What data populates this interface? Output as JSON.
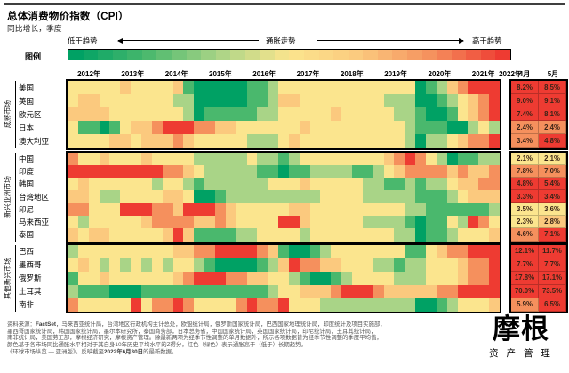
{
  "page": {
    "title": "总体消费物价指数（CPI）",
    "subtitle": "同比增长，季度"
  },
  "legend": {
    "label": "图例",
    "low": "低于趋势",
    "mid": "通胀走势",
    "high": "高于趋势"
  },
  "chart_data": {
    "type": "heatmap",
    "title": "总体消费物价指数（CPI）",
    "subtitle": "同比增长，季度",
    "x_years": [
      "2012年",
      "2013年",
      "2014年",
      "2015年",
      "2016年",
      "2017年",
      "2018年",
      "2019年",
      "2020年",
      "2021年"
    ],
    "year_2022_label": "2022年",
    "month_cols": [
      "4月",
      "5月"
    ],
    "columns_per_year": 4,
    "total_quarter_columns": 41,
    "scale_note": "色阶为各市场同比通胀相对自身10年均值的Z得分：-3=深绿(远低于趋势) … 0=黄 … +3=红(远高于趋势)；单元格数值为估读",
    "palette": {
      "-3": "#00a164",
      "-2": "#4ab86d",
      "-1": "#a9d487",
      "0": "#fbe58e",
      "1": "#fbc97e",
      "2": "#f5905d",
      "3": "#ee3b32"
    },
    "groups": [
      {
        "name": "成熟市场",
        "rows": [
          {
            "label": "美国",
            "cells": [
              0,
              0,
              0,
              0,
              0,
              1,
              0,
              0,
              0,
              0,
              1,
              -2,
              -3,
              -3,
              -3,
              -3,
              -3,
              -2,
              -2,
              -1,
              0,
              0,
              0,
              0,
              0,
              0,
              0,
              0,
              0,
              0,
              0,
              0,
              0,
              -3,
              -2,
              -1,
              1,
              2,
              3,
              3,
              3
            ],
            "values": [
              "8.2%",
              "8.5%"
            ],
            "value_colors": [
              3,
              3
            ]
          },
          {
            "label": "英国",
            "cells": [
              0,
              1,
              1,
              0,
              0,
              0,
              0,
              0,
              0,
              0,
              -1,
              -1,
              -3,
              -3,
              -3,
              -3,
              -3,
              -2,
              -2,
              -1,
              1,
              1,
              0,
              0,
              0,
              0,
              0,
              0,
              0,
              0,
              -1,
              -1,
              -1,
              -3,
              -3,
              -2,
              -1,
              0,
              1,
              2,
              3
            ],
            "values": [
              "9.0%",
              "9.1%"
            ],
            "value_colors": [
              3,
              3
            ]
          },
          {
            "label": "欧元区",
            "cells": [
              1,
              1,
              1,
              1,
              0,
              0,
              0,
              0,
              0,
              0,
              0,
              -1,
              -3,
              -2,
              -2,
              -2,
              -2,
              -2,
              -1,
              -1,
              0,
              0,
              0,
              0,
              0,
              1,
              0,
              0,
              0,
              0,
              0,
              -1,
              -1,
              -2,
              -3,
              -3,
              -2,
              0,
              1,
              2,
              3
            ],
            "values": [
              "7.4%",
              "8.1%"
            ],
            "value_colors": [
              3,
              3
            ]
          },
          {
            "label": "日本",
            "cells": [
              0,
              -2,
              -2,
              -3,
              -2,
              0,
              1,
              1,
              2,
              3,
              3,
              3,
              2,
              2,
              1,
              1,
              0,
              0,
              0,
              0,
              0,
              0,
              1,
              0,
              0,
              0,
              0,
              0,
              0,
              0,
              0,
              0,
              -1,
              -2,
              -2,
              -2,
              -3,
              -3,
              -1,
              0,
              -1
            ],
            "values": [
              "2.4%",
              "2.4%"
            ],
            "value_colors": [
              2,
              2
            ]
          },
          {
            "label": "澳大利亚",
            "cells": [
              0,
              0,
              0,
              0,
              1,
              1,
              0,
              1,
              1,
              1,
              2,
              1,
              0,
              0,
              0,
              0,
              0,
              -1,
              -1,
              -1,
              0,
              1,
              0,
              0,
              0,
              0,
              0,
              0,
              0,
              0,
              0,
              0,
              -1,
              -3,
              -1,
              -1,
              0,
              1,
              2,
              2,
              3
            ],
            "values": [
              "3.4%",
              "4.8%"
            ],
            "value_colors": [
              2,
              3
            ]
          }
        ]
      },
      {
        "name": "新兴亚洲市场",
        "rows": [
          {
            "label": "中国",
            "cells": [
              2,
              0,
              0,
              1,
              0,
              0,
              0,
              1,
              0,
              0,
              0,
              0,
              -1,
              -1,
              -1,
              -1,
              -1,
              0,
              -1,
              -1,
              -2,
              -1,
              0,
              0,
              0,
              0,
              0,
              0,
              0,
              0,
              1,
              2,
              3,
              2,
              0,
              -1,
              -3,
              -2,
              -2,
              -1,
              -1
            ],
            "values": [
              "2.1%",
              "2.1%"
            ],
            "value_colors": [
              0,
              0
            ]
          },
          {
            "label": "印度",
            "cells": [
              3,
              3,
              3,
              3,
              3,
              3,
              3,
              3,
              3,
              2,
              2,
              1,
              0,
              -1,
              -1,
              -1,
              -1,
              -1,
              -2,
              -2,
              -3,
              -2,
              -2,
              -1,
              -1,
              -1,
              -1,
              -2,
              -2,
              -1,
              0,
              1,
              2,
              2,
              2,
              2,
              1,
              2,
              1,
              1,
              2
            ],
            "values": [
              "7.8%",
              "7.0%"
            ],
            "value_colors": [
              2,
              2
            ]
          },
          {
            "label": "韩国",
            "cells": [
              0,
              1,
              0,
              0,
              0,
              0,
              0,
              0,
              -1,
              0,
              0,
              -1,
              -2,
              -1,
              -1,
              -1,
              -1,
              -1,
              -1,
              0,
              0,
              0,
              1,
              0,
              0,
              0,
              0,
              0,
              -1,
              -1,
              -2,
              -2,
              -1,
              -2,
              -1,
              -1,
              0,
              1,
              1,
              2,
              2
            ],
            "values": [
              "4.8%",
              "5.4%"
            ],
            "value_colors": [
              3,
              3
            ]
          },
          {
            "label": "台湾地区",
            "cells": [
              1,
              1,
              0,
              -1,
              -1,
              0,
              0,
              0,
              0,
              1,
              1,
              0,
              -3,
              -3,
              -2,
              -1,
              -1,
              -1,
              -1,
              -1,
              -1,
              -1,
              -1,
              -1,
              0,
              0,
              0,
              0,
              -1,
              -1,
              -1,
              -1,
              -1,
              -2,
              -2,
              -2,
              -1,
              0,
              1,
              1,
              1
            ],
            "values": [
              "3.3%",
              "3.4%"
            ],
            "value_colors": [
              3,
              3
            ]
          },
          {
            "label": "印尼",
            "cells": [
              2,
              2,
              0,
              0,
              0,
              3,
              3,
              3,
              2,
              2,
              1,
              3,
              3,
              3,
              2,
              1,
              0,
              0,
              0,
              0,
              0,
              1,
              1,
              0,
              0,
              0,
              0,
              0,
              0,
              0,
              0,
              0,
              -1,
              -1,
              -2,
              -2,
              -2,
              -2,
              -2,
              -2,
              -1
            ],
            "values": [
              "3.5%",
              "3.6%"
            ],
            "value_colors": [
              0,
              0
            ]
          },
          {
            "label": "马来西亚",
            "cells": [
              0,
              -1,
              0,
              0,
              0,
              0,
              0,
              1,
              2,
              2,
              2,
              2,
              1,
              1,
              2,
              1,
              0,
              0,
              0,
              0,
              3,
              3,
              1,
              0,
              0,
              0,
              0,
              0,
              -1,
              -1,
              -1,
              -1,
              -2,
              -3,
              -2,
              -2,
              0,
              -1,
              3,
              2,
              0
            ],
            "values": [
              "2.3%",
              "2.8%"
            ],
            "value_colors": [
              0,
              1
            ]
          },
          {
            "label": "泰国",
            "cells": [
              1,
              0,
              1,
              1,
              0,
              0,
              0,
              0,
              0,
              1,
              3,
              1,
              -2,
              -2,
              -2,
              -2,
              -1,
              -1,
              0,
              0,
              0,
              0,
              -1,
              0,
              0,
              0,
              0,
              0,
              0,
              0,
              0,
              -1,
              -1,
              -3,
              -2,
              -2,
              -1,
              0,
              0,
              0,
              1
            ],
            "values": [
              "4.6%",
              "7.1%"
            ],
            "value_colors": [
              2,
              3
            ]
          }
        ]
      },
      {
        "name": "其他新兴市场",
        "rows": [
          {
            "label": "巴西",
            "cells": [
              -1,
              0,
              0,
              0,
              0,
              0,
              0,
              0,
              0,
              0,
              1,
              1,
              2,
              2,
              3,
              3,
              3,
              3,
              2,
              1,
              -2,
              -3,
              -3,
              -2,
              -1,
              0,
              0,
              0,
              0,
              0,
              0,
              0,
              -2,
              -2,
              0,
              1,
              2,
              2,
              3,
              3,
              3
            ],
            "values": [
              "12.1%",
              "11.7%"
            ],
            "value_colors": [
              3,
              3
            ]
          },
          {
            "label": "墨西哥",
            "cells": [
              0,
              1,
              0,
              -1,
              0,
              -1,
              0,
              -1,
              0,
              -1,
              0,
              0,
              -1,
              -2,
              -3,
              -3,
              -3,
              -3,
              -2,
              -1,
              1,
              3,
              2,
              2,
              1,
              1,
              0,
              0,
              0,
              -1,
              -1,
              -2,
              -1,
              -1,
              0,
              0,
              0,
              1,
              2,
              2,
              3
            ],
            "values": [
              "7.7%",
              "7.7%"
            ],
            "value_colors": [
              3,
              3
            ]
          },
          {
            "label": "俄罗斯",
            "cells": [
              -2,
              0,
              0,
              1,
              0,
              0,
              0,
              0,
              0,
              0,
              1,
              2,
              3,
              3,
              3,
              2,
              2,
              1,
              1,
              0,
              0,
              -1,
              -2,
              -3,
              -3,
              -2,
              -1,
              0,
              0,
              0,
              0,
              -1,
              -1,
              -1,
              0,
              0,
              0,
              1,
              2,
              2,
              3
            ],
            "values": [
              "17.8%",
              "17.1%"
            ],
            "value_colors": [
              3,
              3
            ]
          },
          {
            "label": "土耳其",
            "cells": [
              -1,
              -2,
              -2,
              -2,
              -3,
              -3,
              -3,
              -2,
              -2,
              -2,
              -2,
              -2,
              -2,
              -2,
              -2,
              -2,
              -2,
              -2,
              -2,
              -1,
              0,
              0,
              1,
              1,
              1,
              2,
              3,
              3,
              3,
              2,
              1,
              1,
              1,
              1,
              1,
              2,
              2,
              3,
              3,
              3,
              3
            ],
            "values": [
              "70.0%",
              "73.5%"
            ],
            "value_colors": [
              3,
              3
            ]
          },
          {
            "label": "南非",
            "cells": [
              2,
              0,
              0,
              0,
              0,
              0,
              3,
              0,
              2,
              2,
              3,
              2,
              0,
              0,
              0,
              0,
              2,
              3,
              2,
              2,
              3,
              0,
              0,
              0,
              -1,
              -1,
              -1,
              -1,
              -1,
              -1,
              -1,
              -1,
              -1,
              -3,
              -3,
              -2,
              -1,
              0,
              0,
              0,
              1
            ],
            "values": [
              "5.9%",
              "6.5%"
            ],
            "value_colors": [
              2,
              3
            ]
          }
        ]
      }
    ]
  },
  "footer": {
    "lines": [
      [
        {
          "t": "资料来源：",
          "b": false
        },
        {
          "t": "FactSet",
          "b": true
        },
        {
          "t": "，马来西亚统计局，台湾地区行政机构主计总处，欧盟统计局，俄罗斯国家统计局，巴西国家地理统计局，印度统计及项目实施部，",
          "b": false
        }
      ],
      [
        {
          "t": "墨西哥国家统计局，韩国国家统计局，墨尔本研究所，泰国商务部，日本总务省，中国国家统计局，英国国家统计局，印尼统计局，土耳其统计局，",
          "b": false
        }
      ],
      [
        {
          "t": "南非统计局，美国劳工部，摩根经济研究，摩根资产管理。除最新两项为经季节性调整的单月数据外，所示各项数据皆为经季节性调整的季度平均值，",
          "b": false
        }
      ],
      [
        {
          "t": "颜色基于各市场同比通胀水平相对于其自身10年历史平均水平的Z得分，红色（绿色）表示通胀高于（低于）长期趋势。",
          "b": false
        }
      ],
      [
        {
          "t": "《环球市场纵览 — 亚洲版》。反映截至",
          "b": false
        },
        {
          "t": "2022年6月30日",
          "b": true
        },
        {
          "t": "的最新数据。",
          "b": false
        }
      ]
    ]
  },
  "logo": {
    "name": "摩根",
    "sub": "资 产 管 理"
  }
}
